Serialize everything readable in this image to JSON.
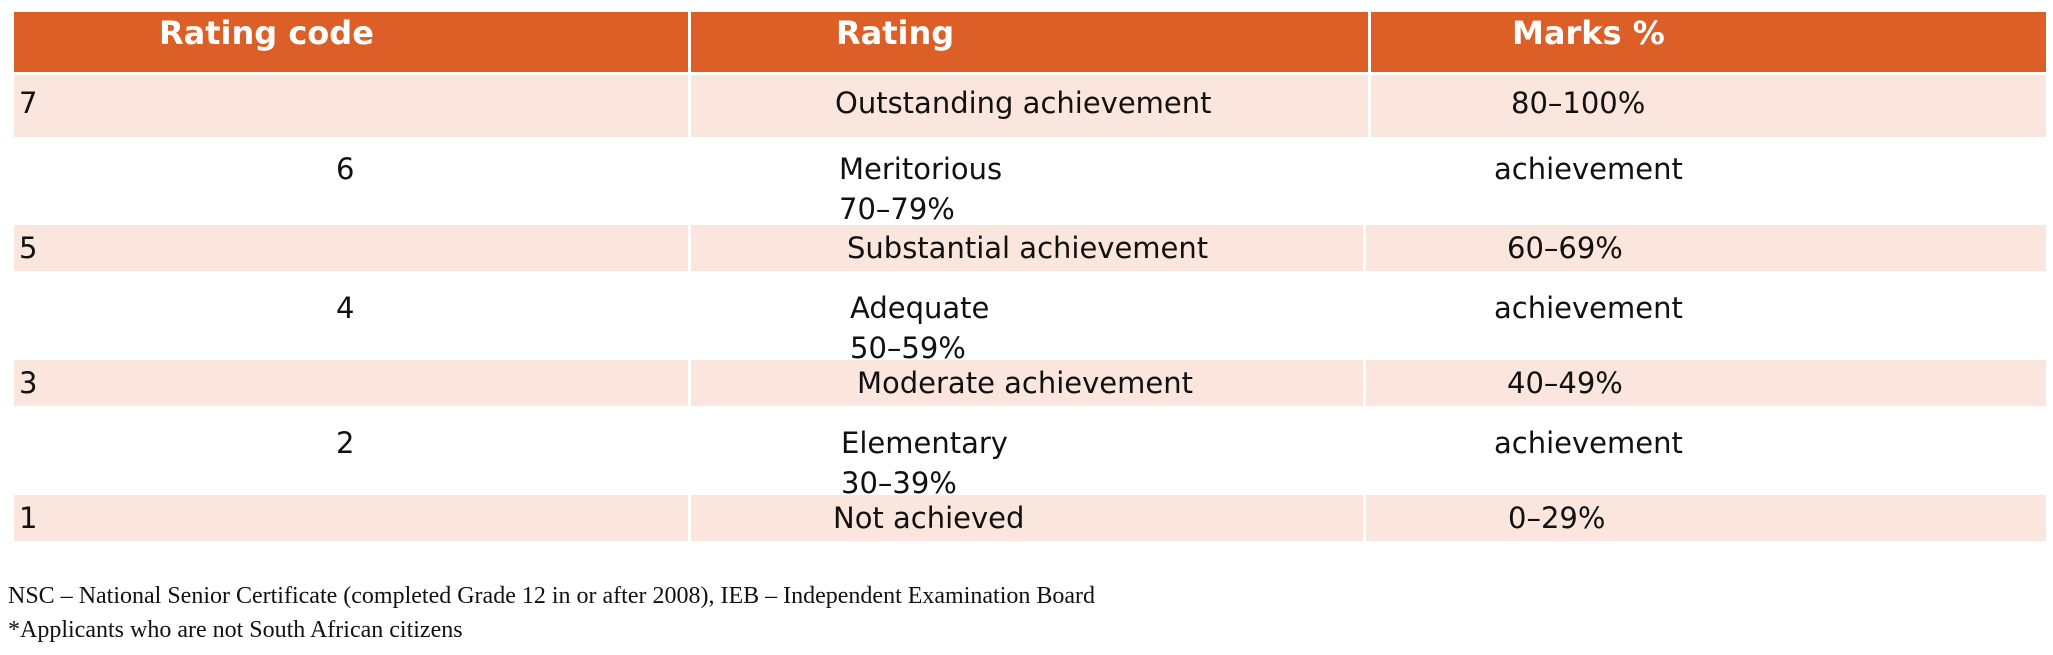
{
  "table": {
    "headers": [
      "Rating code",
      "Rating",
      "Marks %"
    ],
    "rows": [
      {
        "code": "7",
        "rating": "Outstanding achievement",
        "marks": "80–100%"
      },
      {
        "code": "6",
        "rating": "Meritorious",
        "rating2": "70–79%",
        "marks": "achievement"
      },
      {
        "code": "5",
        "rating": "Substantial achievement",
        "marks": "60–69%"
      },
      {
        "code": "4",
        "rating": "Adequate",
        "rating2": "50–59%",
        "marks": "achievement"
      },
      {
        "code": "3",
        "rating": "Moderate achievement",
        "marks": "40–49%"
      },
      {
        "code": "2",
        "rating": "Elementary",
        "rating2": "30–39%",
        "marks": "achievement"
      },
      {
        "code": "1",
        "rating": "Not achieved",
        "marks": "0–29%"
      }
    ]
  },
  "footnotes": [
    "NSC – National Senior Certificate (completed Grade 12 in or after 2008), IEB – Independent Examination Board",
    "*Applicants who are not South African citizens"
  ],
  "colors": {
    "header_bg": "#dc5f27",
    "band_bg": "#fbe6de"
  }
}
